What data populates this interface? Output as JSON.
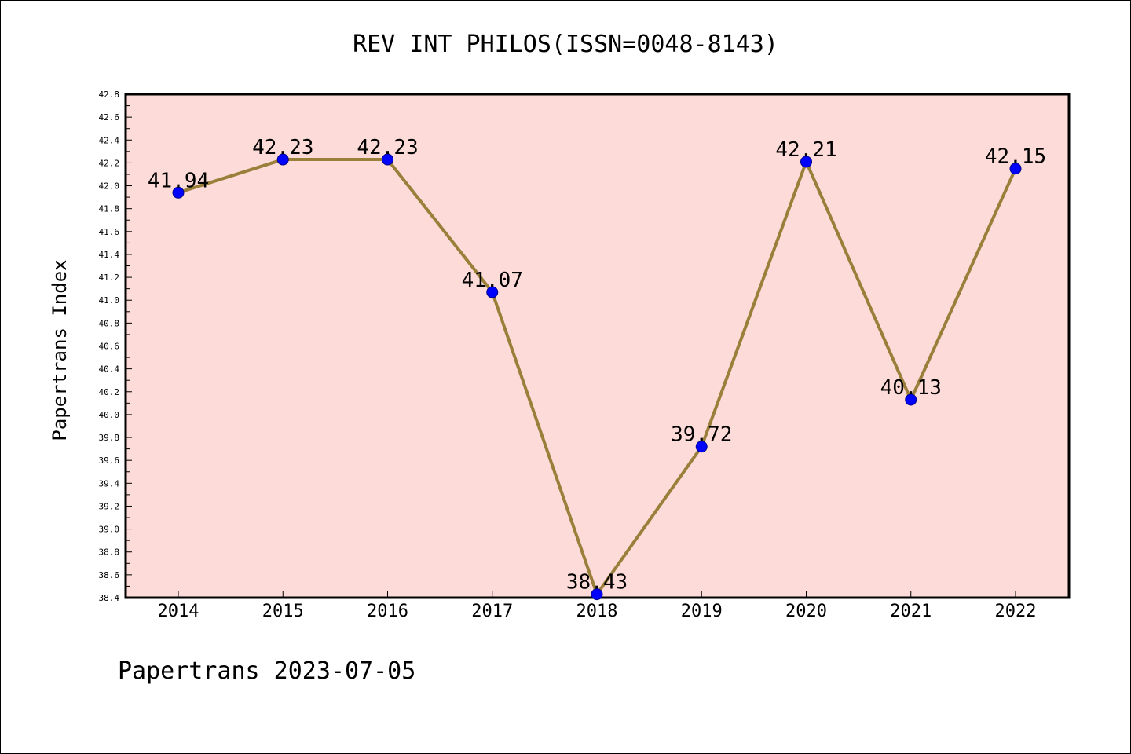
{
  "chart_data": {
    "type": "line",
    "title": "REV INT PHILOS(ISSN=0048-8143)",
    "xlabel": "",
    "ylabel": "Papertrans Index",
    "categories": [
      "2014",
      "2015",
      "2016",
      "2017",
      "2018",
      "2019",
      "2020",
      "2021",
      "2022"
    ],
    "values": [
      41.94,
      42.23,
      42.23,
      41.07,
      38.43,
      39.72,
      42.21,
      40.13,
      42.15
    ],
    "data_labels": [
      "41.94",
      "42.23",
      "42.23",
      "41.07",
      "38.43",
      "39.72",
      "42.21",
      "40.13",
      "42.15"
    ],
    "ylim": [
      38.4,
      42.8
    ],
    "yticks": [
      "38.4",
      "38.6",
      "38.8",
      "39.0",
      "39.2",
      "39.4",
      "39.6",
      "39.8",
      "40.0",
      "40.2",
      "40.4",
      "40.6",
      "40.8",
      "41.0",
      "41.2",
      "41.4",
      "41.6",
      "41.8",
      "42.0",
      "42.2",
      "42.4",
      "42.6",
      "42.8"
    ],
    "grid": false,
    "colors": {
      "plot_background": "#fddbd8",
      "line": "#9a7f3a",
      "marker": "#0000ff"
    }
  },
  "footer": "Papertrans 2023-07-05"
}
